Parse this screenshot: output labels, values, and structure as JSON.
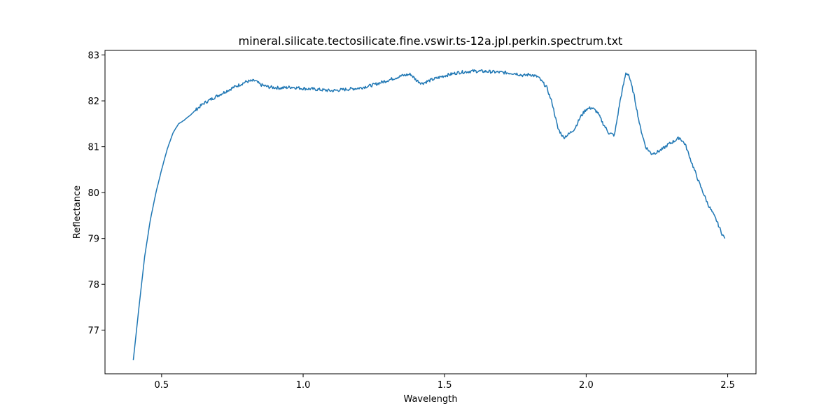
{
  "chart_data": {
    "type": "line",
    "title": "mineral.silicate.tectosilicate.fine.vswir.ts-12a.jpl.perkin.spectrum.txt",
    "xlabel": "Wavelength",
    "ylabel": "Reflectance",
    "xlim": [
      0.3,
      2.6
    ],
    "ylim": [
      76.05,
      83.1
    ],
    "xticks": [
      0.5,
      1.0,
      1.5,
      2.0,
      2.5
    ],
    "xtick_labels": [
      "0.5",
      "1.0",
      "1.5",
      "2.0",
      "2.5"
    ],
    "yticks": [
      77,
      78,
      79,
      80,
      81,
      82,
      83
    ],
    "ytick_labels": [
      "77",
      "78",
      "79",
      "80",
      "81",
      "82",
      "83"
    ],
    "grid": false,
    "series": [
      {
        "color": "#1f77b4",
        "x": [
          0.4,
          0.42,
          0.44,
          0.46,
          0.48,
          0.5,
          0.52,
          0.54,
          0.56,
          0.58,
          0.6,
          0.62,
          0.65,
          0.7,
          0.75,
          0.8,
          0.83,
          0.85,
          0.88,
          0.92,
          0.96,
          1.0,
          1.05,
          1.1,
          1.15,
          1.2,
          1.25,
          1.3,
          1.35,
          1.38,
          1.4,
          1.42,
          1.45,
          1.5,
          1.55,
          1.6,
          1.65,
          1.7,
          1.75,
          1.78,
          1.8,
          1.83,
          1.86,
          1.88,
          1.9,
          1.92,
          1.94,
          1.96,
          1.98,
          2.0,
          2.02,
          2.04,
          2.06,
          2.08,
          2.1,
          2.12,
          2.14,
          2.15,
          2.17,
          2.19,
          2.21,
          2.23,
          2.25,
          2.27,
          2.29,
          2.31,
          2.33,
          2.35,
          2.37,
          2.4,
          2.43,
          2.46,
          2.48,
          2.49
        ],
        "y": [
          76.35,
          77.5,
          78.6,
          79.4,
          80.0,
          80.5,
          80.95,
          81.3,
          81.5,
          81.58,
          81.68,
          81.8,
          81.95,
          82.12,
          82.28,
          82.42,
          82.44,
          82.35,
          82.3,
          82.28,
          82.3,
          82.27,
          82.25,
          82.22,
          82.25,
          82.28,
          82.35,
          82.45,
          82.55,
          82.58,
          82.45,
          82.38,
          82.45,
          82.55,
          82.62,
          82.65,
          82.64,
          82.62,
          82.6,
          82.55,
          82.58,
          82.52,
          82.3,
          81.95,
          81.4,
          81.2,
          81.28,
          81.4,
          81.65,
          81.82,
          81.85,
          81.75,
          81.5,
          81.3,
          81.25,
          82.0,
          82.6,
          82.58,
          82.1,
          81.45,
          81.0,
          80.85,
          80.88,
          80.95,
          81.05,
          81.12,
          81.2,
          81.05,
          80.7,
          80.2,
          79.75,
          79.4,
          79.1,
          79.0
        ]
      }
    ]
  }
}
